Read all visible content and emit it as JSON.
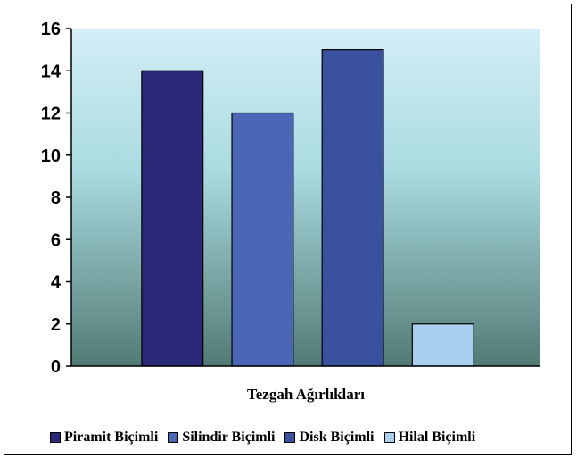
{
  "chart_data": {
    "type": "bar",
    "xlabel": "Tezgah Ağırlıkları",
    "ylabel": "",
    "ylim": [
      0,
      16
    ],
    "yticks": [
      "0",
      "2",
      "4",
      "6",
      "8",
      "10",
      "12",
      "14",
      "16"
    ],
    "grid": false,
    "legend_position": "bottom",
    "series": [
      {
        "name": "Piramit Biçimli",
        "values": [
          14
        ],
        "color": "#2b2877"
      },
      {
        "name": "Silindir Biçimli",
        "values": [
          12
        ],
        "color": "#4a66b5"
      },
      {
        "name": "Disk Biçimli",
        "values": [
          15
        ],
        "color": "#3a519f"
      },
      {
        "name": "Hilal Biçimli",
        "values": [
          2
        ],
        "color": "#a9cfee"
      }
    ],
    "plot_background": {
      "top": "#d4eef7",
      "middle": "#a9dbe0",
      "bottom": "#527a74"
    }
  }
}
